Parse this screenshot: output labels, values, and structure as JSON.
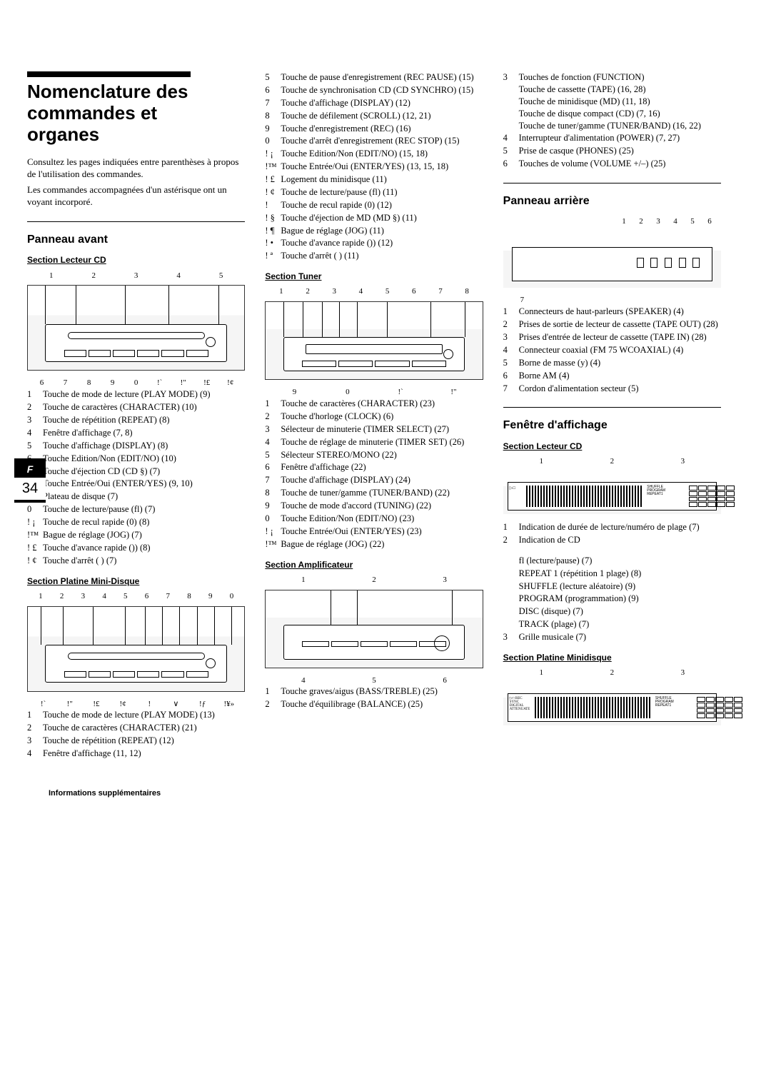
{
  "page_tab": {
    "lang": "F",
    "num": "34"
  },
  "title": "Nomenclature des commandes et organes",
  "intro": [
    "Consultez les pages indiquées entre parenthèses à propos de l'utilisation des commandes.",
    "Les commandes accompagnées d'un astérisque ont un voyant incorporé."
  ],
  "footer": "Informations supplémentaires",
  "panneau_avant": {
    "heading": "Panneau avant",
    "lecteur_cd": {
      "heading": "Section Lecteur CD",
      "top_callouts": [
        "1",
        "2",
        "3",
        "4",
        "5"
      ],
      "bottom_callouts": [
        "6",
        "7",
        "8",
        "9",
        "0",
        "!`",
        "!\"",
        "!£",
        "!¢"
      ],
      "items": [
        {
          "n": "1",
          "t": "Touche de mode de lecture (PLAY MODE) (9)"
        },
        {
          "n": "2",
          "t": "Touche de caractères (CHARACTER) (10)"
        },
        {
          "n": "3",
          "t": "Touche de répétition (REPEAT) (8)"
        },
        {
          "n": "4",
          "t": "Fenêtre d'affichage (7, 8)"
        },
        {
          "n": "5",
          "t": "Touche d'affichage (DISPLAY) (8)"
        },
        {
          "n": "6",
          "t": "Touche Edition/Non (EDIT/NO) (10)"
        },
        {
          "n": "7",
          "t": "Touche d'éjection CD (CD §) (7)"
        },
        {
          "n": "8",
          "t": "Touche Entrée/Oui (ENTER/YES) (9, 10)"
        },
        {
          "n": "9",
          "t": "Plateau de disque (7)"
        },
        {
          "n": "0",
          "t": "Touche de lecture/pause (fl) (7)"
        },
        {
          "n": "! ¡",
          "t": "Touche de recul rapide (0) (8)"
        },
        {
          "n": "!™",
          "t": "Bague de réglage (JOG) (7)"
        },
        {
          "n": "! £",
          "t": "Touche d'avance rapide ()) (8)"
        },
        {
          "n": "! ¢",
          "t": "Touche d'arrêt (  ) (7)"
        }
      ]
    },
    "mini_disque": {
      "heading": "Section Platine Mini-Disque",
      "top_callouts": [
        "1",
        "2",
        "3",
        "4",
        "5",
        "6",
        "7",
        "8",
        "9",
        "0"
      ],
      "bottom_callouts": [
        "!`",
        "!\"",
        "!£",
        "!¢",
        "!",
        "∨",
        "!ƒ",
        "!¥»"
      ],
      "items": [
        {
          "n": "1",
          "t": "Touche de mode de lecture (PLAY MODE) (13)"
        },
        {
          "n": "2",
          "t": "Touche de caractères (CHARACTER) (21)"
        },
        {
          "n": "3",
          "t": "Touche de répétition (REPEAT) (12)"
        },
        {
          "n": "4",
          "t": "Fenêtre d'affichage (11, 12)"
        }
      ]
    }
  },
  "col2": {
    "md_cont": [
      {
        "n": "5",
        "t": "Touche de pause d'enregistrement (REC PAUSE) (15)"
      },
      {
        "n": "6",
        "t": "Touche de synchronisation CD (CD SYNCHRO) (15)"
      },
      {
        "n": "7",
        "t": "Touche d'affichage (DISPLAY) (12)"
      },
      {
        "n": "8",
        "t": "Touche de défilement (SCROLL) (12, 21)"
      },
      {
        "n": "9",
        "t": "Touche d'enregistrement (REC) (16)"
      },
      {
        "n": "0",
        "t": "Touche d'arrêt d'enregistrement (REC STOP) (15)"
      },
      {
        "n": "! ¡",
        "t": "Touche Edition/Non (EDIT/NO) (15, 18)"
      },
      {
        "n": "!™",
        "t": "Touche Entrée/Oui (ENTER/YES) (13, 15, 18)"
      },
      {
        "n": "! £",
        "t": "Logement du minidisque (11)"
      },
      {
        "n": "! ¢",
        "t": "Touche de lecture/pause (fl) (11)"
      },
      {
        "n": "!",
        "t": "Touche de recul rapide (0) (12)"
      },
      {
        "n": "! §",
        "t": "Touche d'éjection de MD (MD §) (11)"
      },
      {
        "n": "! ¶",
        "t": "Bague de réglage (JOG) (11)"
      },
      {
        "n": "! •",
        "t": "Touche d'avance rapide ()) (12)"
      },
      {
        "n": "! ª",
        "t": "Touche d'arrêt (  ) (11)"
      }
    ],
    "tuner": {
      "heading": "Section Tuner",
      "top_callouts": [
        "1",
        "2",
        "3",
        "4",
        "5",
        "6",
        "7",
        "8"
      ],
      "bottom_callouts": [
        "9",
        "0",
        "!`",
        "!\""
      ],
      "items": [
        {
          "n": "1",
          "t": "Touche de caractères (CHARACTER) (23)"
        },
        {
          "n": "2",
          "t": "Touche d'horloge (CLOCK) (6)"
        },
        {
          "n": "3",
          "t": "Sélecteur de minuterie (TIMER SELECT) (27)"
        },
        {
          "n": "4",
          "t": "Touche de réglage de minuterie (TIMER SET) (26)"
        },
        {
          "n": "5",
          "t": "Sélecteur STEREO/MONO (22)"
        },
        {
          "n": "6",
          "t": "Fenêtre d'affichage (22)"
        },
        {
          "n": "7",
          "t": "Touche d'affichage (DISPLAY) (24)"
        },
        {
          "n": "8",
          "t": "Touche de tuner/gamme (TUNER/BAND) (22)"
        },
        {
          "n": "9",
          "t": "Touche de mode d'accord (TUNING) (22)"
        },
        {
          "n": "0",
          "t": "Touche Edition/Non (EDIT/NO) (23)"
        },
        {
          "n": "! ¡",
          "t": "Touche Entrée/Oui (ENTER/YES) (23)"
        },
        {
          "n": "!™",
          "t": "Bague de réglage (JOG) (22)"
        }
      ]
    },
    "ampli": {
      "heading": "Section Amplificateur",
      "top_callouts": [
        "1",
        "2",
        "3"
      ],
      "bottom_callouts": [
        "4",
        "5",
        "6"
      ],
      "items": [
        {
          "n": "1",
          "t": "Touche graves/aigus (BASS/TREBLE) (25)"
        },
        {
          "n": "2",
          "t": "Touche d'équilibrage (BALANCE) (25)"
        }
      ]
    }
  },
  "col3": {
    "ampli_cont": [
      {
        "n": "3",
        "t": "Touches de fonction (FUNCTION) Touche de cassette (TAPE) (16, 28) Touche de minidisque (MD) (11, 18) Touche de disque compact (CD) (7, 16) Touche de tuner/gamme (TUNER/BAND) (16, 22)"
      },
      {
        "n": "4",
        "t": "Interrupteur d'alimentation (POWER) (7, 27)"
      },
      {
        "n": "5",
        "t": "Prise de casque (PHONES) (25)"
      },
      {
        "n": "6",
        "t": "Touches de volume (VOLUME +/–) (25)"
      }
    ],
    "panneau_arriere": {
      "heading": "Panneau arrière",
      "top_callouts": [
        "1",
        "2",
        "3",
        "4",
        "5",
        "6"
      ],
      "bottom_callout": "7",
      "items": [
        {
          "n": "1",
          "t": "Connecteurs de haut-parleurs (SPEAKER) (4)"
        },
        {
          "n": "2",
          "t": "Prises de sortie de lecteur de cassette (TAPE OUT) (28)"
        },
        {
          "n": "3",
          "t": "Prises d'entrée de lecteur de cassette (TAPE IN) (28)"
        },
        {
          "n": "4",
          "t": "Connecteur coaxial (FM 75 WCOAXIAL) (4)"
        },
        {
          "n": "5",
          "t": "Borne de masse (y) (4)"
        },
        {
          "n": "6",
          "t": "Borne AM (4)"
        },
        {
          "n": "7",
          "t": "Cordon d'alimentation secteur (5)"
        }
      ]
    },
    "fenetre": {
      "heading": "Fenêtre d'affichage",
      "lecteur_cd": {
        "heading": "Section Lecteur CD",
        "top_callouts": [
          "1",
          "2",
          "3"
        ],
        "items": [
          {
            "n": "1",
            "t": "Indication de durée de lecture/numéro de plage (7)"
          },
          {
            "n": "2",
            "t": "Indication de CD"
          },
          {
            "n": "3",
            "t": "Grille musicale (7)"
          }
        ],
        "sublines": [
          "fl (lecture/pause)  (7)",
          "REPEAT 1 (répétition 1 plage) (8)",
          "SHUFFLE (lecture aléatoire) (9)",
          "PROGRAM (programmation) (9)",
          "DISC (disque) (7)",
          "TRACK (plage) (7)"
        ]
      },
      "minidisque": {
        "heading": "Section Platine Minidisque",
        "top_callouts": [
          "1",
          "2",
          "3"
        ]
      }
    }
  }
}
